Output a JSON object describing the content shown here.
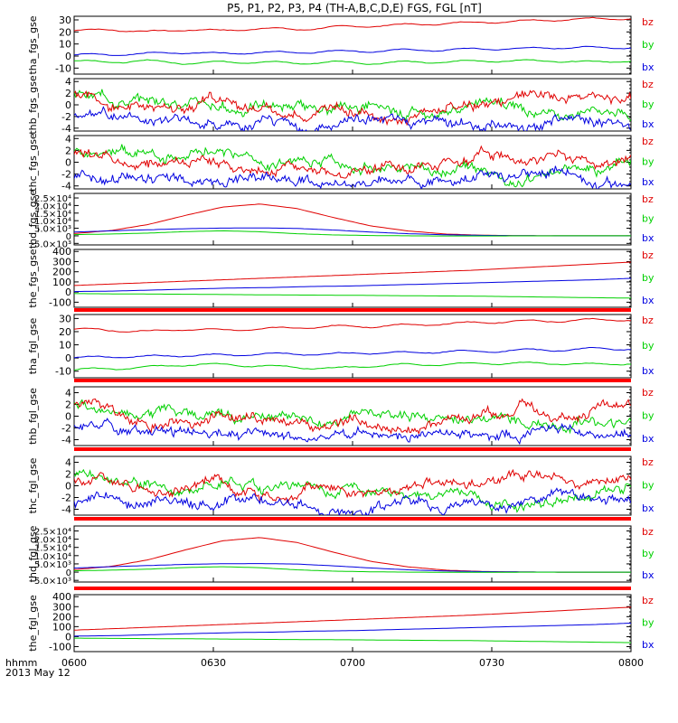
{
  "title": "P5, P1, P2, P3, P4 (TH-A,B,C,D,E) FGS, FGL [nT]",
  "footer": {
    "line1": "hhmm",
    "line2": "2013 May 12"
  },
  "colors": {
    "bz": "#e00000",
    "by": "#00d000",
    "bx": "#0000e0",
    "bar": "#ff0000",
    "frame": "#000000"
  },
  "chart_data": {
    "type": "line",
    "x_ticks": [
      "0600",
      "0630",
      "0700",
      "0730",
      "0800"
    ],
    "legend": [
      "bz",
      "by",
      "bx"
    ],
    "panels": [
      {
        "name": "tha_fgs_gse",
        "ylim": [
          -15,
          33
        ],
        "yticks": [
          "30",
          "20",
          "10",
          "0",
          "-10"
        ],
        "ytick_values": [
          30,
          20,
          10,
          0,
          -10
        ],
        "series": [
          {
            "name": "bz",
            "shape": "drift",
            "values": [
              21,
              22,
              20,
              22,
              21,
              23,
              22,
              24,
              25,
              26,
              27,
              28,
              29,
              30,
              31,
              31
            ]
          },
          {
            "name": "bx",
            "shape": "drift",
            "values": [
              1,
              1,
              2,
              3,
              2,
              3,
              3,
              4,
              4,
              5,
              5,
              6,
              6,
              7,
              7,
              7
            ]
          },
          {
            "name": "by",
            "shape": "drift",
            "values": [
              -4,
              -5,
              -4,
              -6,
              -5,
              -5,
              -6,
              -5,
              -6,
              -5,
              -5,
              -4,
              -4,
              -4,
              -5,
              -4
            ]
          }
        ]
      },
      {
        "name": "thb_fgs_gse",
        "ylim": [
          -4.5,
          4.5
        ],
        "yticks": [
          "4",
          "2",
          "0",
          "-2",
          "-4"
        ],
        "ytick_values": [
          4,
          2,
          0,
          -2,
          -4
        ],
        "series": [
          {
            "name": "by",
            "shape": "noisy",
            "values": [
              2,
              1.5,
              0.5,
              1,
              0,
              -0.5,
              0,
              -1,
              -1,
              0,
              -0.5,
              -1,
              -0.5,
              1,
              -0.5,
              -1,
              -0.5,
              -1
            ]
          },
          {
            "name": "bz",
            "shape": "noisy",
            "values": [
              1.5,
              1,
              0,
              -0.5,
              0.5,
              -0.5,
              -1,
              -1.5,
              -0.5,
              -1,
              -2,
              -1,
              0,
              0.5,
              1,
              0.5,
              1,
              1
            ]
          },
          {
            "name": "bx",
            "shape": "noisy",
            "values": [
              -2,
              -1.5,
              -3,
              -3.5,
              -3,
              -3.5,
              -3,
              -3.5,
              -3.5,
              -3,
              -3.5,
              -3,
              -3,
              -3.5,
              -3,
              -2.5,
              -3,
              -3.5
            ]
          }
        ]
      },
      {
        "name": "thc_fgs_gse",
        "ylim": [
          -4.5,
          4.5
        ],
        "yticks": [
          "4",
          "2",
          "0",
          "-2",
          "-4"
        ],
        "ytick_values": [
          4,
          2,
          0,
          -2,
          -4
        ],
        "series": [
          {
            "name": "by",
            "shape": "noisy",
            "values": [
              2,
              1.5,
              1,
              0,
              1,
              0.5,
              0,
              0.5,
              0,
              -0.5,
              -1,
              -2,
              -1,
              -2,
              -3,
              -2,
              -1,
              0
            ]
          },
          {
            "name": "bz",
            "shape": "noisy",
            "values": [
              1.5,
              1,
              0,
              -0.5,
              1,
              -1,
              -1,
              -0.5,
              -1,
              -2,
              -1,
              0,
              0.5,
              1,
              1,
              1.5,
              0.5,
              1
            ]
          },
          {
            "name": "bx",
            "shape": "noisy",
            "values": [
              -2.5,
              -2,
              -3,
              -3,
              -3.5,
              -2.5,
              -3,
              -3,
              -3.5,
              -3,
              -3,
              -3,
              -2.5,
              -3,
              -2,
              -1.5,
              -3,
              -3.5
            ]
          }
        ]
      },
      {
        "name": "thd_fgs_gse",
        "ylim": [
          -6000,
          28000
        ],
        "yticks": [
          "2.5×10⁴",
          "2.0×10⁴",
          "1.5×10⁴",
          "1.0×10⁴",
          "5.0×10³",
          "0",
          "-5.0×10³"
        ],
        "ytick_values": [
          25000,
          20000,
          15000,
          10000,
          5000,
          0,
          -5000
        ],
        "series": [
          {
            "name": "bz",
            "shape": "smooth",
            "values": [
              1500,
              3500,
              7500,
              13500,
              19000,
              21000,
              18000,
              12000,
              6500,
              3200,
              1200,
              400,
              100,
              0,
              0,
              0
            ]
          },
          {
            "name": "bx",
            "shape": "smooth",
            "values": [
              2500,
              3300,
              4000,
              4700,
              5100,
              5200,
              4900,
              3800,
              2500,
              1400,
              700,
              300,
              100,
              0,
              0,
              0
            ]
          },
          {
            "name": "by",
            "shape": "smooth",
            "values": [
              800,
              1200,
              1800,
              2800,
              3300,
              2700,
              1400,
              600,
              200,
              0,
              -100,
              -100,
              -50,
              0,
              0,
              0
            ]
          }
        ]
      },
      {
        "name": "the_fgs_gse",
        "ylim": [
          -150,
          420
        ],
        "yticks": [
          "400",
          "300",
          "200",
          "100",
          "0",
          "-100"
        ],
        "ytick_values": [
          400,
          300,
          200,
          100,
          0,
          -100
        ],
        "series": [
          {
            "name": "bz",
            "shape": "smooth",
            "values": [
              65,
              80,
              95,
              110,
              125,
              140,
              155,
              170,
              185,
              200,
              215,
              235,
              255,
              275,
              295
            ]
          },
          {
            "name": "bx",
            "shape": "smooth",
            "values": [
              5,
              10,
              20,
              30,
              40,
              45,
              55,
              60,
              70,
              80,
              90,
              100,
              110,
              120,
              135
            ]
          },
          {
            "name": "by",
            "shape": "smooth",
            "values": [
              -15,
              -18,
              -20,
              -22,
              -25,
              -28,
              -30,
              -32,
              -35,
              -38,
              -40,
              -45,
              -50,
              -55,
              -60
            ]
          }
        ]
      },
      {
        "name": "tha_fgl_gse",
        "ylim": [
          -15,
          33
        ],
        "yticks": [
          "30",
          "20",
          "10",
          "0",
          "-10"
        ],
        "ytick_values": [
          30,
          20,
          10,
          0,
          -10
        ],
        "series": [
          {
            "name": "bz",
            "shape": "drift",
            "values": [
              22,
              21,
              20,
              22,
              21,
              22,
              23,
              24,
              24,
              25,
              26,
              27,
              28,
              28,
              29,
              29
            ]
          },
          {
            "name": "bx",
            "shape": "drift",
            "values": [
              0,
              1,
              1,
              2,
              2,
              3,
              3,
              3,
              4,
              4,
              5,
              5,
              6,
              6,
              7,
              7
            ]
          },
          {
            "name": "by",
            "shape": "drift",
            "values": [
              -9,
              -8,
              -7,
              -5,
              -5,
              -6,
              -7,
              -8,
              -6,
              -5,
              -5,
              -4,
              -4,
              -4,
              -5,
              -4
            ]
          }
        ]
      },
      {
        "name": "thb_fgl_gse",
        "ylim": [
          -5,
          5
        ],
        "yticks": [
          "4",
          "2",
          "0",
          "-2",
          "-4"
        ],
        "ytick_values": [
          4,
          2,
          0,
          -2,
          -4
        ],
        "series": [
          {
            "name": "by",
            "shape": "noisy",
            "values": [
              2,
              1.5,
              0.5,
              1,
              0.5,
              0,
              0.5,
              -0.5,
              -1,
              0,
              -0.5,
              -1,
              -0.5,
              0.5,
              -1,
              -1.5,
              -0.5,
              -1
            ]
          },
          {
            "name": "bz",
            "shape": "noisy",
            "values": [
              1.5,
              1,
              -0.5,
              -1,
              0,
              -0.5,
              -1,
              -1.5,
              -1,
              -1.5,
              -2,
              -1,
              0,
              0.5,
              1,
              0.5,
              1,
              1
            ]
          },
          {
            "name": "bx",
            "shape": "noisy",
            "values": [
              -2,
              -1.5,
              -3,
              -3.5,
              -3,
              -3.5,
              -3,
              -3.5,
              -3.5,
              -3,
              -3.5,
              -3,
              -3,
              -3.5,
              -3,
              -2,
              -3,
              -3.5
            ]
          }
        ]
      },
      {
        "name": "thc_fgl_gse",
        "ylim": [
          -5,
          5
        ],
        "yticks": [
          "4",
          "2",
          "0",
          "-2",
          "-4"
        ],
        "ytick_values": [
          4,
          2,
          0,
          -2,
          -4
        ],
        "series": [
          {
            "name": "by",
            "shape": "noisy",
            "values": [
              2,
              1.5,
              1,
              0,
              1,
              0.5,
              0,
              0.5,
              0,
              -0.5,
              -1,
              -2,
              -1.5,
              -2.5,
              -3,
              -2,
              -1,
              0
            ]
          },
          {
            "name": "bz",
            "shape": "noisy",
            "values": [
              1.5,
              1,
              0,
              -0.5,
              1,
              -1,
              -1,
              -0.5,
              -1,
              -2,
              -1,
              0,
              0.5,
              1,
              1,
              1.5,
              0.5,
              1
            ]
          },
          {
            "name": "bx",
            "shape": "noisy",
            "values": [
              -2.5,
              -2,
              -3,
              -3,
              -3.5,
              -2.5,
              -3,
              -3,
              -3.5,
              -3,
              -3,
              -3,
              -2.5,
              -3,
              -2,
              -1,
              -3,
              -3.5
            ]
          }
        ]
      },
      {
        "name": "thd_fgl_gse",
        "ylim": [
          -6000,
          28000
        ],
        "yticks": [
          "2.5×10⁴",
          "2.0×10⁴",
          "1.5×10⁴",
          "1.0×10⁴",
          "5.0×10³",
          "0",
          "-5.0×10³"
        ],
        "ytick_values": [
          25000,
          20000,
          15000,
          10000,
          5000,
          0,
          -5000
        ],
        "series": [
          {
            "name": "bz",
            "shape": "smooth",
            "values": [
              1500,
              3500,
              7500,
              13500,
              19000,
              21000,
              18000,
              12000,
              6500,
              3200,
              1200,
              400,
              100,
              0,
              0,
              0
            ]
          },
          {
            "name": "bx",
            "shape": "smooth",
            "values": [
              2500,
              3300,
              4000,
              4700,
              5100,
              5200,
              4900,
              3800,
              2500,
              1400,
              700,
              300,
              100,
              0,
              0,
              0
            ]
          },
          {
            "name": "by",
            "shape": "smooth",
            "values": [
              800,
              1200,
              1800,
              2800,
              3300,
              2700,
              1400,
              600,
              200,
              0,
              -100,
              -100,
              -50,
              0,
              0,
              0
            ]
          }
        ]
      },
      {
        "name": "the_fgl_gse",
        "ylim": [
          -150,
          420
        ],
        "yticks": [
          "400",
          "300",
          "200",
          "100",
          "0",
          "-100"
        ],
        "ytick_values": [
          400,
          300,
          200,
          100,
          0,
          -100
        ],
        "series": [
          {
            "name": "bz",
            "shape": "smooth",
            "values": [
              65,
              80,
              95,
              110,
              125,
              140,
              155,
              170,
              185,
              200,
              215,
              235,
              255,
              275,
              295
            ]
          },
          {
            "name": "bx",
            "shape": "smooth",
            "values": [
              5,
              10,
              20,
              30,
              40,
              45,
              55,
              60,
              70,
              80,
              90,
              100,
              110,
              120,
              135
            ]
          },
          {
            "name": "by",
            "shape": "smooth",
            "values": [
              -15,
              -18,
              -20,
              -22,
              -25,
              -28,
              -30,
              -32,
              -35,
              -38,
              -40,
              -45,
              -50,
              -55,
              -60
            ]
          }
        ]
      }
    ]
  }
}
